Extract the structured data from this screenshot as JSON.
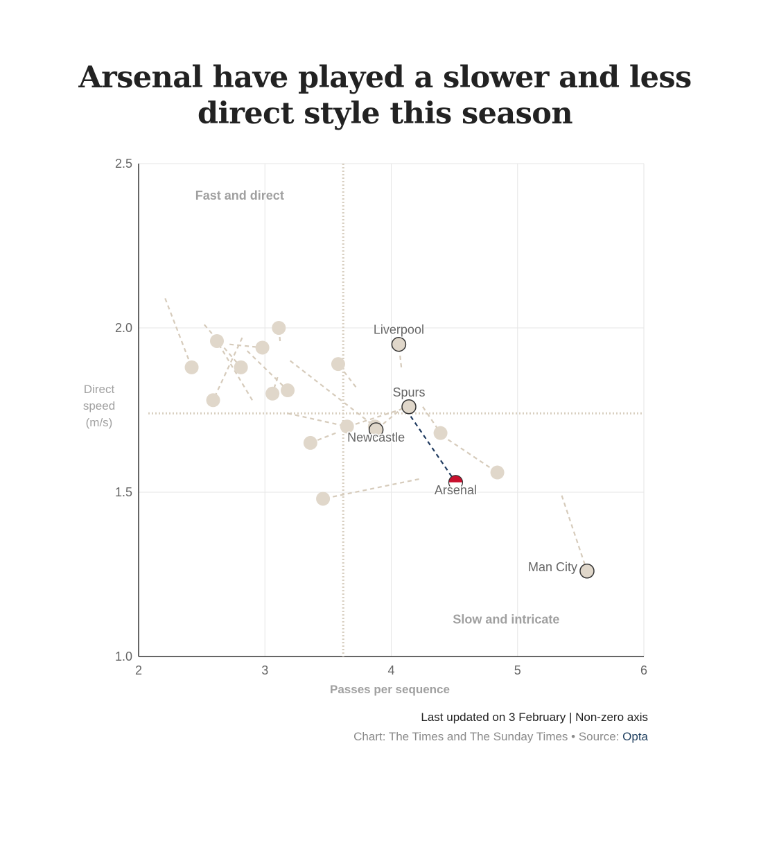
{
  "title_line1": "Arsenal have played a slower and less",
  "title_line2": "direct style this season",
  "footer": {
    "updated": "Last updated on 3 February | Non-zero axis",
    "credit_prefix": "Chart: The Times and The Sunday Times • Source: ",
    "source": "Opta"
  },
  "colors": {
    "dot": "#e0d7ca",
    "line": "#d6cbbb",
    "highlight_line": "#1f3a5f",
    "arsenal_red": "#c8102e",
    "reference": "#d8cfc0",
    "grid": "#e6e6e6",
    "axis": "#333333",
    "label": "#666666",
    "quadrant_label": "#a0a0a0"
  },
  "chart_data": {
    "type": "scatter",
    "xlabel": "Passes per sequence",
    "ylabel": [
      "Direct",
      "speed",
      "(m/s)"
    ],
    "xlim": [
      2,
      6
    ],
    "ylim": [
      1.0,
      2.5
    ],
    "xticks": [
      "2",
      "3",
      "4",
      "5",
      "6"
    ],
    "yticks": [
      "1.0",
      "1.5",
      "2.0",
      "2.5"
    ],
    "grid": true,
    "reference_lines": {
      "x": 3.62,
      "y": 1.74
    },
    "quadrant_labels": [
      {
        "text": "Fast and direct",
        "x": 2.8,
        "y": 2.39
      },
      {
        "text": "Slow and intricate",
        "x": 4.91,
        "y": 1.1
      }
    ],
    "teams": [
      {
        "name": "Liverpool",
        "x": 4.06,
        "y": 1.95,
        "prev_x": 4.08,
        "prev_y": 1.88,
        "highlight": true,
        "label_pos": "above"
      },
      {
        "name": "Spurs",
        "x": 4.14,
        "y": 1.76,
        "prev_x": 3.66,
        "prev_y": 1.7,
        "highlight": true,
        "label_pos": "above"
      },
      {
        "name": "Newcastle",
        "x": 3.88,
        "y": 1.69,
        "prev_x": 4.1,
        "prev_y": 1.76,
        "highlight": true,
        "label_pos": "below"
      },
      {
        "name": "Arsenal",
        "x": 4.51,
        "y": 1.53,
        "prev_x": 4.12,
        "prev_y": 1.75,
        "highlight": true,
        "arsenal": true,
        "label_pos": "below"
      },
      {
        "name": "Man City",
        "x": 5.55,
        "y": 1.26,
        "prev_x": 5.35,
        "prev_y": 1.49,
        "highlight": true,
        "label_pos": "left"
      },
      {
        "name": "",
        "x": 2.42,
        "y": 1.88,
        "prev_x": 2.21,
        "prev_y": 2.09
      },
      {
        "name": "",
        "x": 2.62,
        "y": 1.96,
        "prev_x": 2.9,
        "prev_y": 1.78
      },
      {
        "name": "",
        "x": 2.59,
        "y": 1.78,
        "prev_x": 2.82,
        "prev_y": 1.97
      },
      {
        "name": "",
        "x": 2.81,
        "y": 1.88,
        "prev_x": 2.52,
        "prev_y": 2.01
      },
      {
        "name": "",
        "x": 2.98,
        "y": 1.94,
        "prev_x": 2.72,
        "prev_y": 1.95
      },
      {
        "name": "",
        "x": 3.11,
        "y": 2.0,
        "prev_x": 3.12,
        "prev_y": 1.96
      },
      {
        "name": "",
        "x": 3.18,
        "y": 1.81,
        "prev_x": 2.86,
        "prev_y": 1.93
      },
      {
        "name": "",
        "x": 3.06,
        "y": 1.8,
        "prev_x": 3.1,
        "prev_y": 1.85
      },
      {
        "name": "",
        "x": 3.58,
        "y": 1.89,
        "prev_x": 3.72,
        "prev_y": 1.82
      },
      {
        "name": "",
        "x": 3.36,
        "y": 1.65,
        "prev_x": 3.56,
        "prev_y": 1.68
      },
      {
        "name": "",
        "x": 3.65,
        "y": 1.7,
        "prev_x": 3.18,
        "prev_y": 1.74
      },
      {
        "name": "",
        "x": 3.87,
        "y": 1.7,
        "prev_x": 3.2,
        "prev_y": 1.9
      },
      {
        "name": "",
        "x": 3.46,
        "y": 1.48,
        "prev_x": 4.22,
        "prev_y": 1.54
      },
      {
        "name": "",
        "x": 4.39,
        "y": 1.68,
        "prev_x": 4.25,
        "prev_y": 1.76
      },
      {
        "name": "",
        "x": 4.84,
        "y": 1.56,
        "prev_x": 4.45,
        "prev_y": 1.66
      }
    ]
  }
}
